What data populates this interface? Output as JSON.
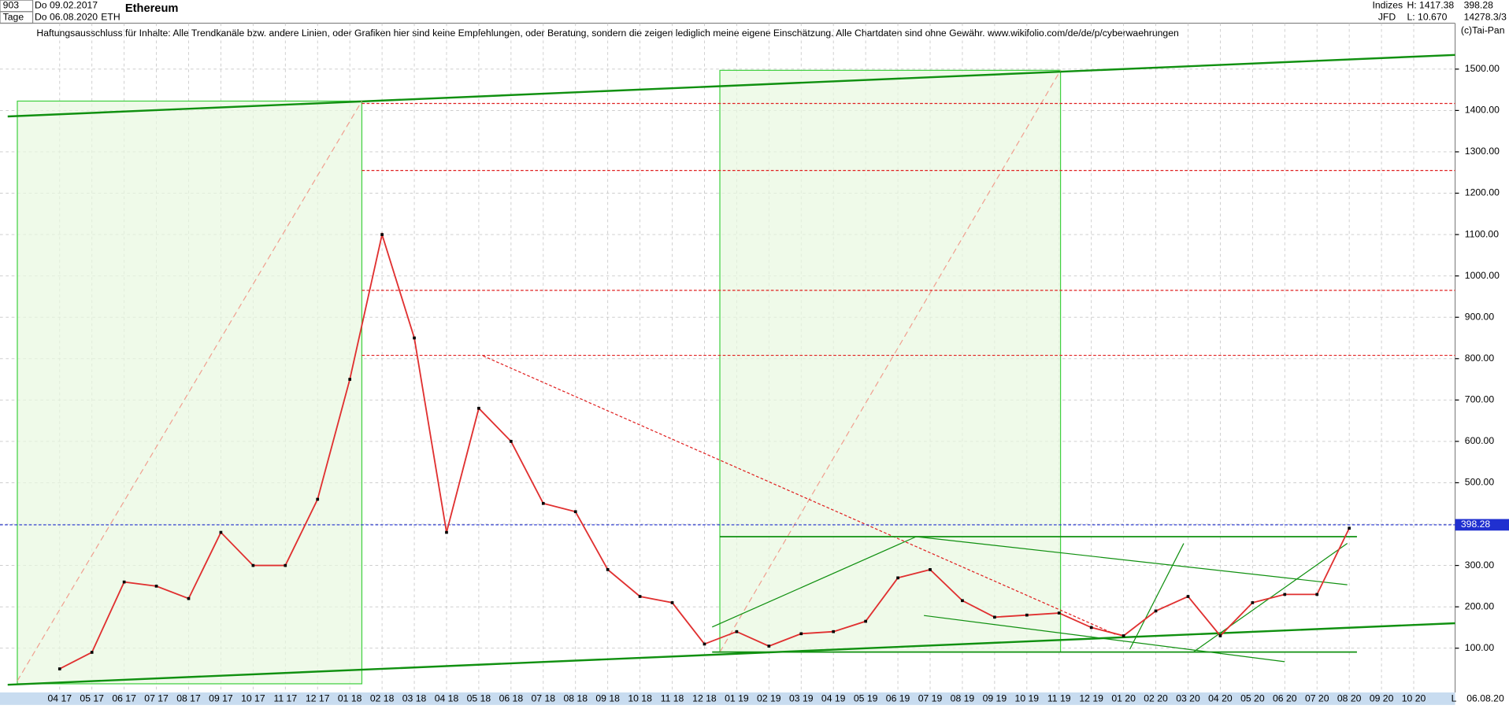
{
  "header": {
    "bars": "903",
    "from": "Do 09.02.2017",
    "period": "Tage",
    "to": "Do 06.08.2020",
    "symbol": "ETH",
    "source_group": "Indizes",
    "source": "JFD",
    "high": "H: 1417.38",
    "low": "L: 10.670",
    "last": "398.28",
    "extra": "14278.3/3",
    "copyright": "(c)Tai-Pan",
    "corner": "L",
    "date": "06.08.20"
  },
  "chart_data": {
    "type": "line",
    "title": "Ethereum",
    "subtitle": "Haftungsausschluss für Inhalte: Alle Trendkanäle bzw. andere Linien, oder Grafiken hier sind keine Empfehlungen, oder Beratung, sondern die zeigen lediglich meine eigene Einschätzung. Alle Chartdaten sind ohne Gewähr.  www.wikifolio.com/de/de/p/cyberwaehrungen",
    "categories": [
      "04 17",
      "05 17",
      "06 17",
      "07 17",
      "08 17",
      "09 17",
      "10 17",
      "11 17",
      "12 17",
      "01 18",
      "02 18",
      "03 18",
      "04 18",
      "05 18",
      "06 18",
      "07 18",
      "08 18",
      "09 18",
      "10 18",
      "11 18",
      "12 18",
      "01 19",
      "02 19",
      "03 19",
      "04 19",
      "05 19",
      "06 19",
      "07 19",
      "08 19",
      "09 19",
      "10 19",
      "11 19",
      "12 19",
      "01 20",
      "02 20",
      "03 20",
      "04 20",
      "05 20",
      "06 20",
      "07 20",
      "08 20",
      "09 20",
      "10 20"
    ],
    "series": [
      {
        "name": "ETH",
        "color": "#e03030",
        "values": [
          50,
          90,
          260,
          250,
          220,
          380,
          300,
          300,
          460,
          750,
          1100,
          850,
          380,
          680,
          600,
          450,
          430,
          290,
          225,
          210,
          110,
          140,
          105,
          135,
          140,
          165,
          270,
          290,
          215,
          175,
          180,
          185,
          150,
          130,
          190,
          225,
          130,
          210,
          230,
          230,
          390,
          null,
          null
        ]
      }
    ],
    "last_price": {
      "value": 398.28,
      "label": "398.28",
      "color": "#2030d0"
    },
    "hlines": [
      1417,
      1255,
      965,
      808
    ],
    "ylim": [
      -7,
      1611
    ],
    "yticks": [
      {
        "value": 100,
        "label": "100.00"
      },
      {
        "value": 200,
        "label": "200.00"
      },
      {
        "value": 300,
        "label": "300.00"
      },
      {
        "value": 400,
        "label": "400.00"
      },
      {
        "value": 500,
        "label": "500.00"
      },
      {
        "value": 600,
        "label": "600.00"
      },
      {
        "value": 700,
        "label": "700.00"
      },
      {
        "value": 800,
        "label": "800.00"
      },
      {
        "value": 900,
        "label": "900.00"
      },
      {
        "value": 1000,
        "label": "1000.00"
      },
      {
        "value": 1100,
        "label": "1100.00"
      },
      {
        "value": 1200,
        "label": "1200.00"
      },
      {
        "value": 1300,
        "label": "1300.00"
      },
      {
        "value": 1400,
        "label": "1400.00"
      },
      {
        "value": 1500,
        "label": "1500.00"
      }
    ],
    "grid": true
  }
}
